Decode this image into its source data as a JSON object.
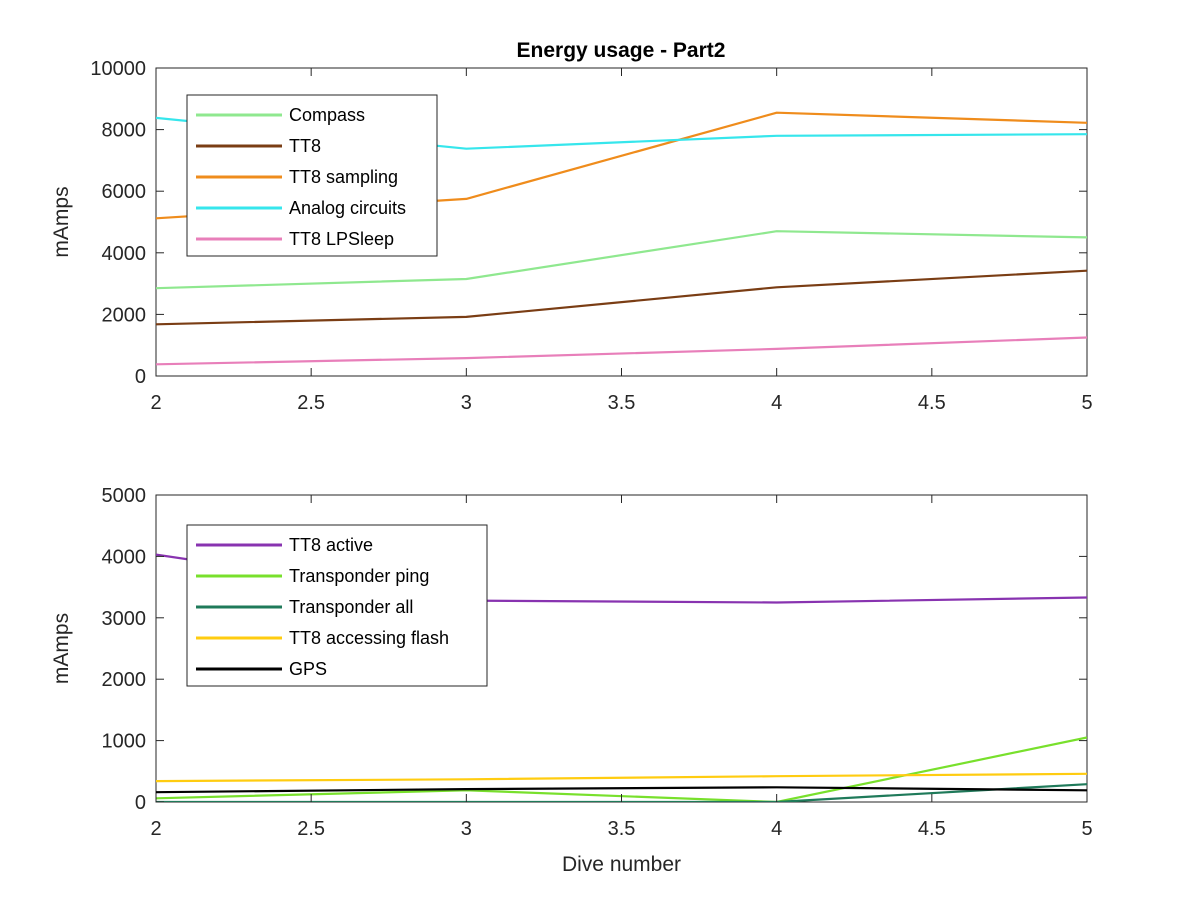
{
  "figure": {
    "title": "Energy usage - Part2"
  },
  "chart_data": [
    {
      "type": "line",
      "title": "Energy usage - Part2",
      "xlabel": "",
      "ylabel": "mAmps",
      "xlim": [
        2,
        5
      ],
      "ylim": [
        0,
        10000
      ],
      "x_ticks": [
        "2",
        "2.5",
        "3",
        "3.5",
        "4",
        "4.5",
        "5"
      ],
      "y_ticks": [
        "0",
        "2000",
        "4000",
        "6000",
        "8000",
        "10000"
      ],
      "grid": false,
      "legend_position": "top-left",
      "x": [
        2,
        3,
        4,
        5
      ],
      "series": [
        {
          "name": "Compass",
          "color": "#8fe88f",
          "values": [
            2850,
            3150,
            4700,
            4500
          ]
        },
        {
          "name": "TT8",
          "color": "#7a3d14",
          "values": [
            1680,
            1920,
            2880,
            3420
          ]
        },
        {
          "name": "TT8 sampling",
          "color": "#ef8c1c",
          "values": [
            5120,
            5750,
            8550,
            8220
          ]
        },
        {
          "name": "Analog circuits",
          "color": "#36e6ec",
          "values": [
            8380,
            7380,
            7800,
            7850
          ]
        },
        {
          "name": "TT8 LPSleep",
          "color": "#e87fba",
          "values": [
            380,
            580,
            880,
            1250
          ]
        }
      ]
    },
    {
      "type": "line",
      "title": "",
      "xlabel": "Dive number",
      "ylabel": "mAmps",
      "xlim": [
        2,
        5
      ],
      "ylim": [
        0,
        5000
      ],
      "x_ticks": [
        "2",
        "2.5",
        "3",
        "3.5",
        "4",
        "4.5",
        "5"
      ],
      "y_ticks": [
        "0",
        "1000",
        "2000",
        "3000",
        "4000",
        "5000"
      ],
      "grid": false,
      "legend_position": "top-left",
      "x": [
        2,
        3,
        4,
        5
      ],
      "series": [
        {
          "name": "TT8 active",
          "color": "#8833b0",
          "values": [
            4030,
            3280,
            3250,
            3330
          ]
        },
        {
          "name": "Transponder ping",
          "color": "#78e02c",
          "values": [
            60,
            190,
            0,
            1050
          ]
        },
        {
          "name": "Transponder all",
          "color": "#1f7a5a",
          "values": [
            0,
            0,
            0,
            290
          ]
        },
        {
          "name": "TT8 accessing flash",
          "color": "#ffcc10",
          "values": [
            340,
            370,
            420,
            460
          ]
        },
        {
          "name": "GPS",
          "color": "#000000",
          "values": [
            160,
            210,
            240,
            190
          ]
        }
      ]
    }
  ]
}
